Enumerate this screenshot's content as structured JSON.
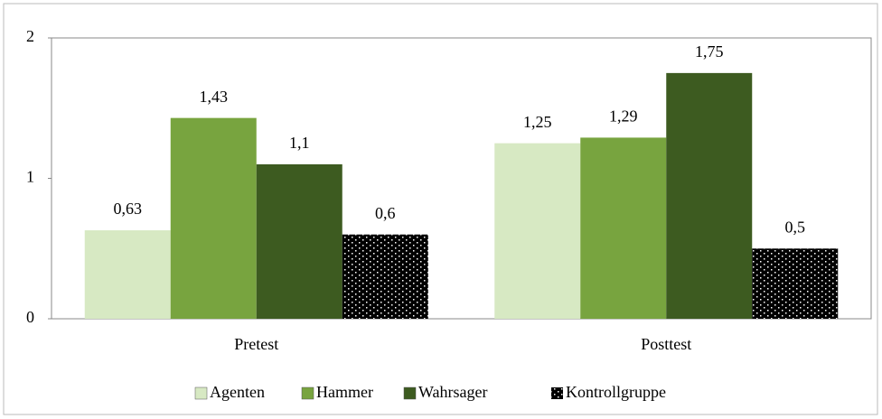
{
  "chart_data": {
    "type": "bar",
    "categories": [
      "Pretest",
      "Posttest"
    ],
    "series": [
      {
        "name": "Agenten",
        "color": "#d7e9c3",
        "values": [
          0.63,
          1.25
        ],
        "value_labels": [
          "0,63",
          "1,25"
        ]
      },
      {
        "name": "Hammer",
        "color": "#78a43f",
        "values": [
          1.43,
          1.29
        ],
        "value_labels": [
          "1,43",
          "1,29"
        ]
      },
      {
        "name": "Wahrsager",
        "color": "#3d5b20",
        "values": [
          1.1,
          1.75
        ],
        "value_labels": [
          "1,1",
          "1,75"
        ]
      },
      {
        "name": "Kontrollgruppe",
        "color": "#000000",
        "pattern": "dotted",
        "values": [
          0.6,
          0.5
        ],
        "value_labels": [
          "0,6",
          "0,5"
        ]
      }
    ],
    "ylim": [
      0,
      2
    ],
    "yticks": [
      0,
      1,
      2
    ],
    "legend": "bottom"
  }
}
